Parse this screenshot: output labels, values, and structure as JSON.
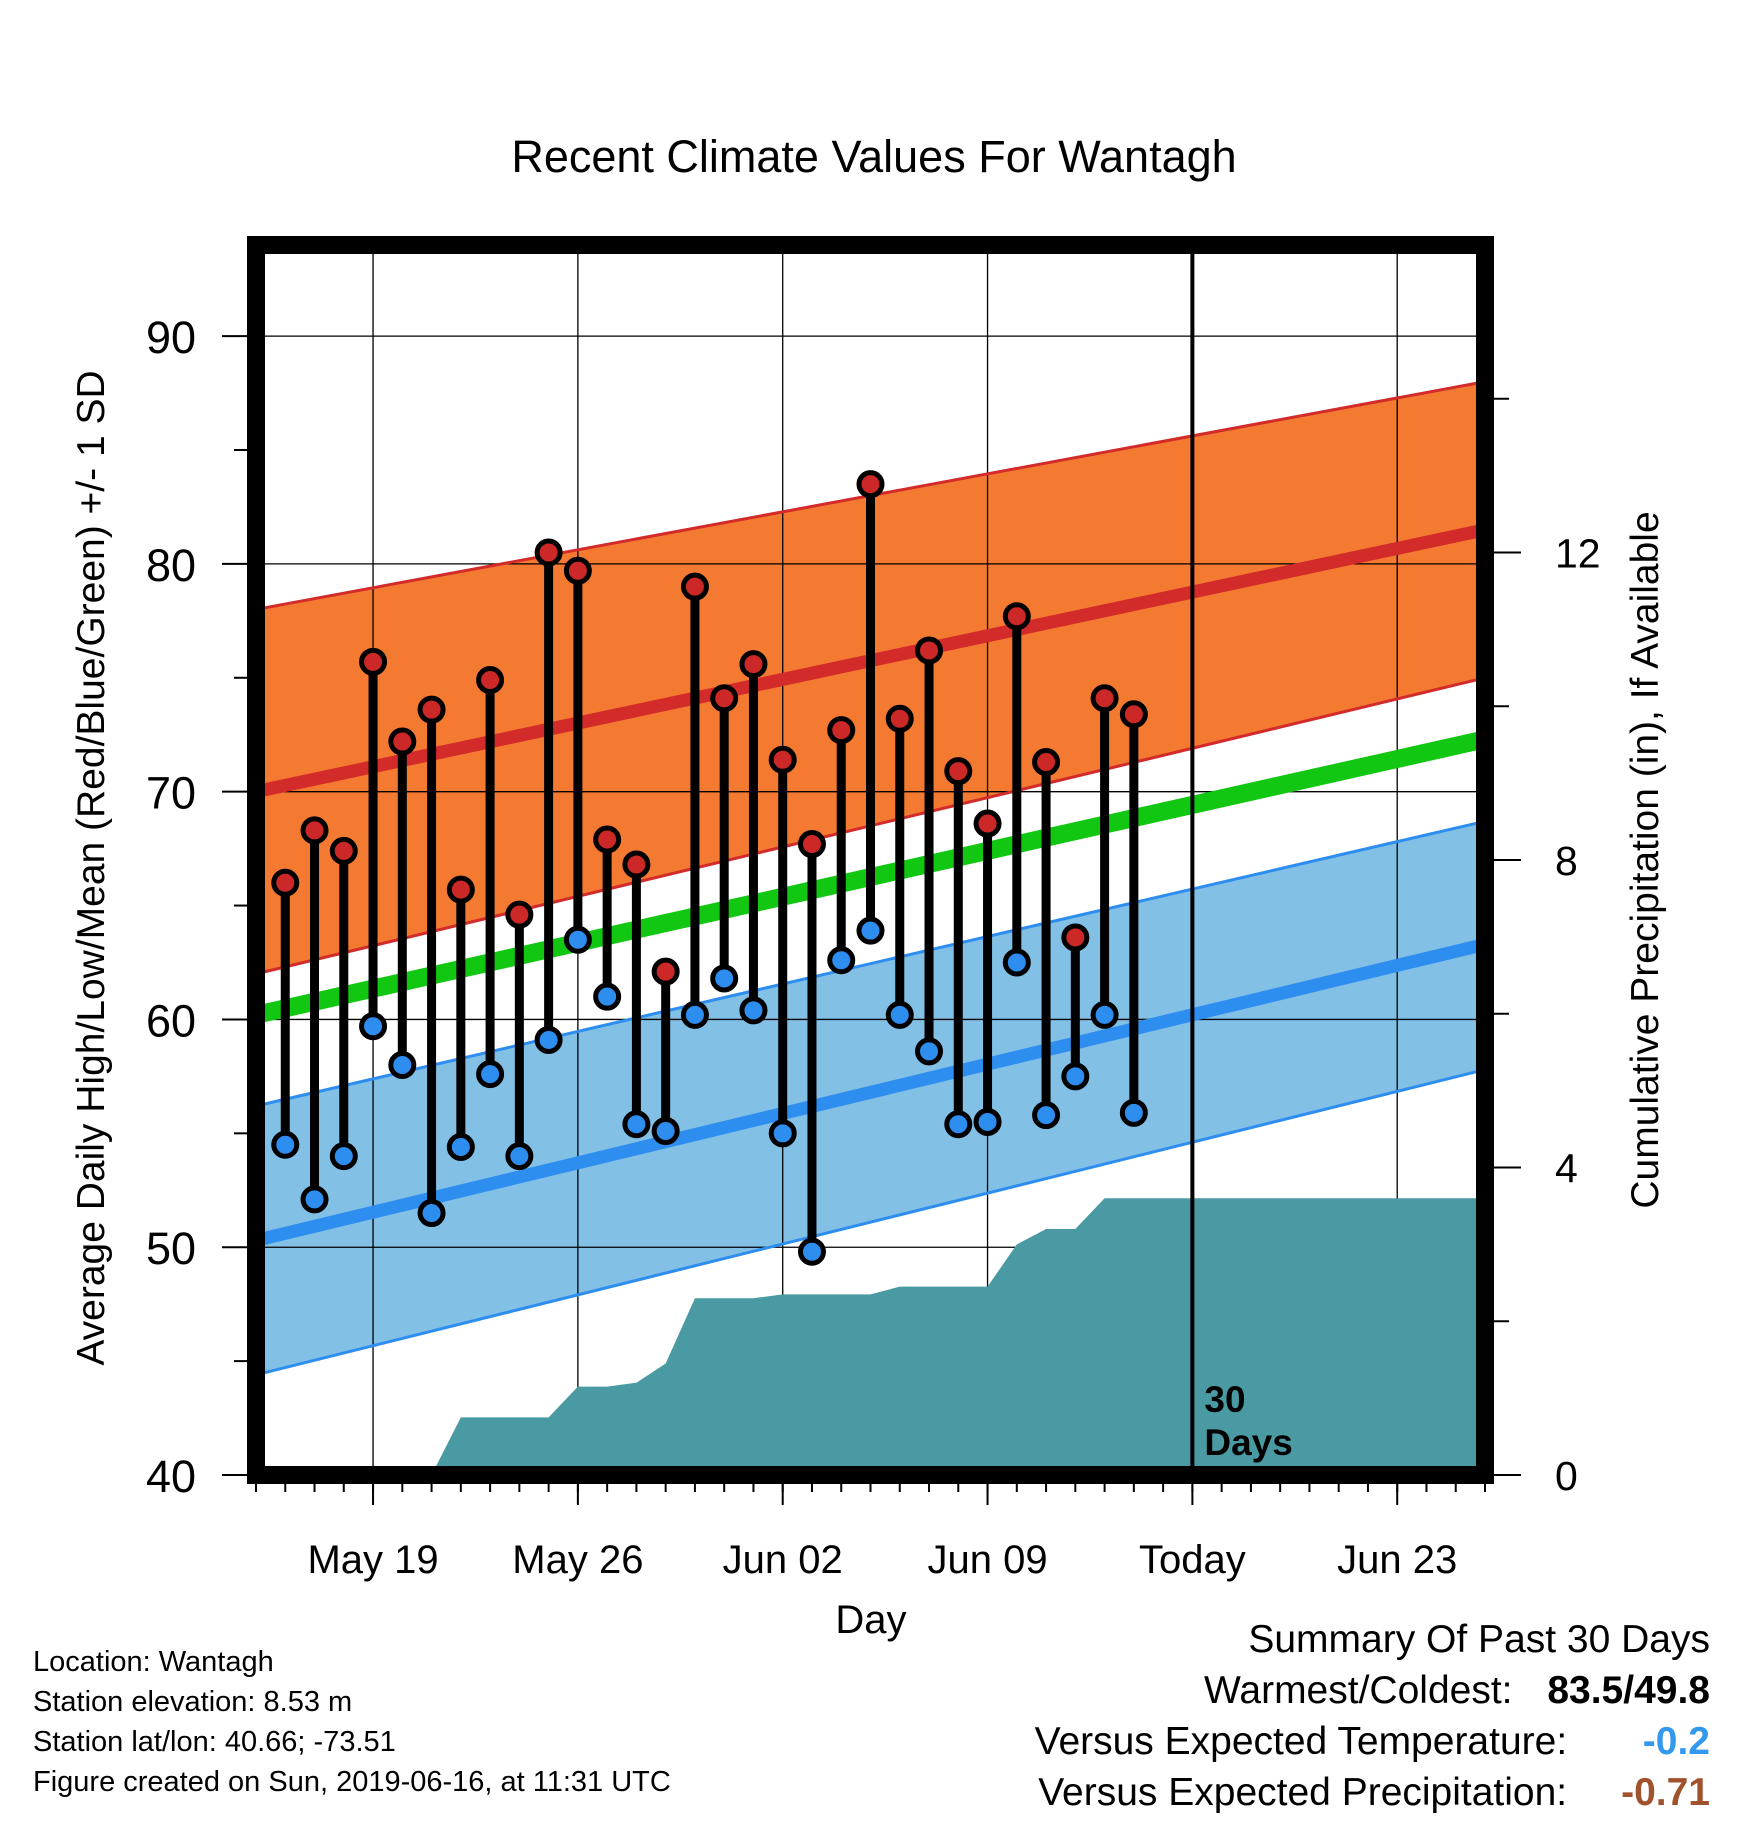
{
  "chart_data": {
    "type": "line",
    "title": "Recent Climate Values For Wantagh",
    "xlabel": "Day",
    "ylabel_left": "Average Daily High/Low/Mean (Red/Blue/Green) +/- 1 SD",
    "ylabel_right": "Cumulative Precipitation (in), If Available",
    "y_left_range": [
      40,
      94
    ],
    "y_left_ticks": [
      "40",
      "50",
      "60",
      "70",
      "80",
      "90"
    ],
    "y_right_range": [
      0,
      16
    ],
    "y_right_ticks": [
      "0",
      "4",
      "8",
      "12"
    ],
    "x_range": [
      "2019-05-15",
      "2019-06-26"
    ],
    "x_ticks": [
      {
        "date": "2019-05-19",
        "label": "May 19"
      },
      {
        "date": "2019-05-26",
        "label": "May 26"
      },
      {
        "date": "2019-06-02",
        "label": "Jun 02"
      },
      {
        "date": "2019-06-09",
        "label": "Jun 09"
      },
      {
        "date": "2019-06-16",
        "label": "Today"
      },
      {
        "date": "2019-06-23",
        "label": "Jun 23"
      }
    ],
    "today": "2019-06-16",
    "today_label": [
      "30",
      "Days"
    ],
    "grid": true,
    "normal_bands": {
      "dates": [
        "2019-05-15",
        "2019-06-26"
      ],
      "high_mean": [
        70.0,
        81.5
      ],
      "high_upper": [
        78.0,
        88.0
      ],
      "high_lower": [
        62.0,
        75.0
      ],
      "mean": [
        60.2,
        72.3
      ],
      "low_mean": [
        50.3,
        63.3
      ],
      "low_upper": [
        56.2,
        68.7
      ],
      "low_lower": [
        44.4,
        57.8
      ]
    },
    "colors": {
      "high_band": "#f47a32",
      "high_line": "#d32a2a",
      "mean_line": "#12c712",
      "low_band": "#82c0e6",
      "low_line": "#2e8ef0",
      "precip": "#4a9aa4",
      "high_marker": "#cc2828",
      "low_marker": "#2e8ef0",
      "summary_cold": "#3399ee",
      "summary_dry": "#a0522d"
    },
    "daily": {
      "dates": [
        "2019-05-16",
        "2019-05-17",
        "2019-05-18",
        "2019-05-19",
        "2019-05-20",
        "2019-05-21",
        "2019-05-22",
        "2019-05-23",
        "2019-05-24",
        "2019-05-25",
        "2019-05-26",
        "2019-05-27",
        "2019-05-28",
        "2019-05-29",
        "2019-05-30",
        "2019-05-31",
        "2019-06-01",
        "2019-06-02",
        "2019-06-03",
        "2019-06-04",
        "2019-06-05",
        "2019-06-06",
        "2019-06-07",
        "2019-06-08",
        "2019-06-09",
        "2019-06-10",
        "2019-06-11",
        "2019-06-12",
        "2019-06-13",
        "2019-06-14",
        "2019-06-15"
      ],
      "highs": [
        66.0,
        68.3,
        67.4,
        75.7,
        72.2,
        73.6,
        65.7,
        74.9,
        64.6,
        80.5,
        79.7,
        67.9,
        66.8,
        62.1,
        79.0,
        74.1,
        75.6,
        71.4,
        67.7,
        72.7,
        83.5,
        73.2,
        76.2,
        70.9,
        68.6,
        77.7,
        71.3,
        63.6,
        74.1,
        73.4,
        null
      ],
      "lows": [
        54.5,
        52.1,
        54.0,
        59.7,
        58.0,
        51.5,
        54.4,
        57.6,
        54.0,
        59.1,
        63.5,
        61.0,
        55.4,
        55.1,
        60.2,
        61.8,
        60.4,
        55.0,
        49.8,
        62.6,
        63.9,
        60.2,
        58.6,
        55.4,
        55.5,
        62.5,
        55.8,
        57.5,
        60.2,
        55.9,
        null
      ]
    },
    "cumulative_precip": {
      "dates": [
        "2019-05-15",
        "2019-05-21",
        "2019-05-22",
        "2019-05-23",
        "2019-05-24",
        "2019-05-25",
        "2019-05-26",
        "2019-05-27",
        "2019-05-28",
        "2019-05-29",
        "2019-05-30",
        "2019-05-31",
        "2019-06-01",
        "2019-06-02",
        "2019-06-03",
        "2019-06-04",
        "2019-06-05",
        "2019-06-06",
        "2019-06-07",
        "2019-06-08",
        "2019-06-09",
        "2019-06-10",
        "2019-06-11",
        "2019-06-12",
        "2019-06-13",
        "2019-06-26"
      ],
      "values": [
        0,
        0,
        0.75,
        0.75,
        0.75,
        0.75,
        1.15,
        1.15,
        1.2,
        1.45,
        2.3,
        2.3,
        2.3,
        2.35,
        2.35,
        2.35,
        2.35,
        2.45,
        2.45,
        2.45,
        2.45,
        3.0,
        3.2,
        3.2,
        3.6,
        3.6
      ]
    }
  },
  "footer": {
    "location": "Location: Wantagh",
    "elevation": "Station elevation: 8.53 m",
    "latlon": "Station lat/lon: 40.66; -73.51",
    "created": "Figure created on Sun, 2019-06-16, at 11:31 UTC"
  },
  "summary": {
    "heading": "Summary Of Past 30 Days",
    "warmest_label": "Warmest/Coldest:",
    "warmest_value": "83.5/49.8",
    "temp_label": "Versus Expected Temperature:",
    "temp_value": "-0.2",
    "precip_label": "Versus Expected Precipitation:",
    "precip_value": "-0.71"
  }
}
